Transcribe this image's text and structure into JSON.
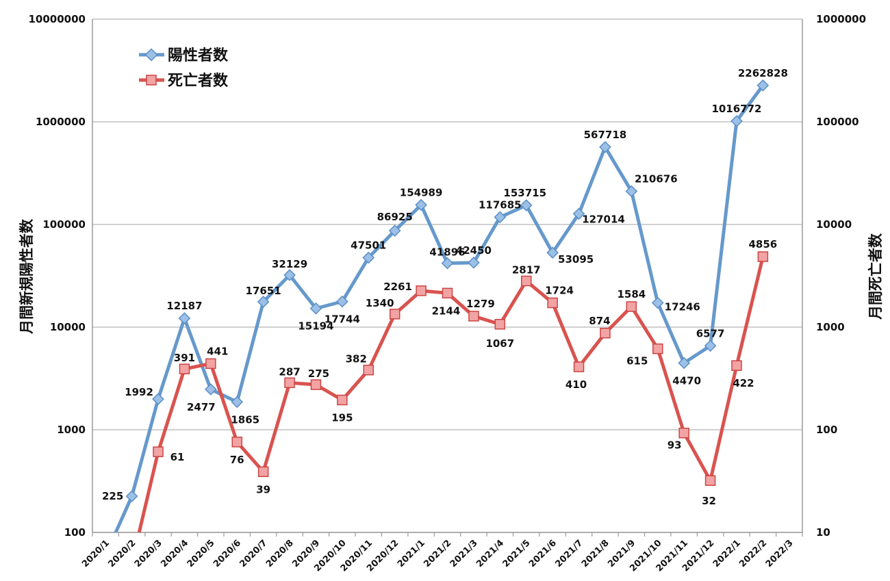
{
  "chart_data": {
    "type": "line",
    "categories": [
      "2020/1",
      "2020/2",
      "2020/3",
      "2020/4",
      "2020/5",
      "2020/6",
      "2020/7",
      "2020/8",
      "2020/9",
      "2020/10",
      "2020/11",
      "2020/12",
      "2021/1",
      "2021/2",
      "2021/3",
      "2021/4",
      "2021/5",
      "2021/6",
      "2021/7",
      "2021/8",
      "2021/9",
      "2021/10",
      "2021/11",
      "2021/12",
      "2022/1",
      "2022/2",
      "2022/3"
    ],
    "left_axis": {
      "label": "月間新規陽性者数",
      "scale": "log",
      "ylim": [
        100,
        10000000
      ],
      "ticks": [
        "100",
        "1000",
        "10000",
        "100000",
        "1000000",
        "10000000"
      ]
    },
    "right_axis": {
      "label": "月間死亡者数",
      "scale": "log",
      "ylim": [
        10,
        1000000
      ],
      "ticks": [
        "10",
        "100",
        "1000",
        "10000",
        "100000",
        "1000000"
      ]
    },
    "series": [
      {
        "name": "陽性者数",
        "axis": "left",
        "color": "#6699cc",
        "marker": "diamond",
        "values": [
          null,
          225,
          1992,
          12187,
          2477,
          1865,
          17651,
          32129,
          15194,
          17744,
          47501,
          86925,
          154989,
          41896,
          42450,
          117685,
          153715,
          53095,
          127014,
          567718,
          210676,
          17246,
          4470,
          6577,
          1016772,
          2262828,
          null
        ],
        "data_labels": [
          null,
          "225",
          "1992",
          "12187",
          "2477",
          "1865",
          "17651",
          "32129",
          "15194",
          "17744",
          "47501",
          "86925",
          "154989",
          "41896",
          "42450",
          "117685",
          "153715",
          "53095",
          "127014",
          "567718",
          "210676",
          "17246",
          "4470",
          "6577",
          "1016772",
          "2262828",
          null
        ],
        "left_edge_value": 60
      },
      {
        "name": "死亡者数",
        "axis": "right",
        "color": "#d9534f",
        "marker": "square",
        "values": [
          null,
          null,
          61,
          391,
          441,
          76,
          39,
          287,
          275,
          195,
          382,
          1340,
          2261,
          2144,
          1279,
          1067,
          2817,
          1724,
          410,
          874,
          1584,
          615,
          93,
          32,
          422,
          4856,
          null
        ],
        "data_labels": [
          null,
          null,
          "61",
          "391",
          "441",
          "76",
          "39",
          "287",
          "275",
          "195",
          "382",
          "1340",
          "2261",
          "2144",
          "1279",
          "1067",
          "2817",
          "1724",
          "410",
          "874",
          "1584",
          "615",
          "93",
          "32",
          "422",
          "4856",
          null
        ],
        "left_edge_value": 5
      }
    ],
    "grid": true,
    "legend_position": "top-left"
  }
}
